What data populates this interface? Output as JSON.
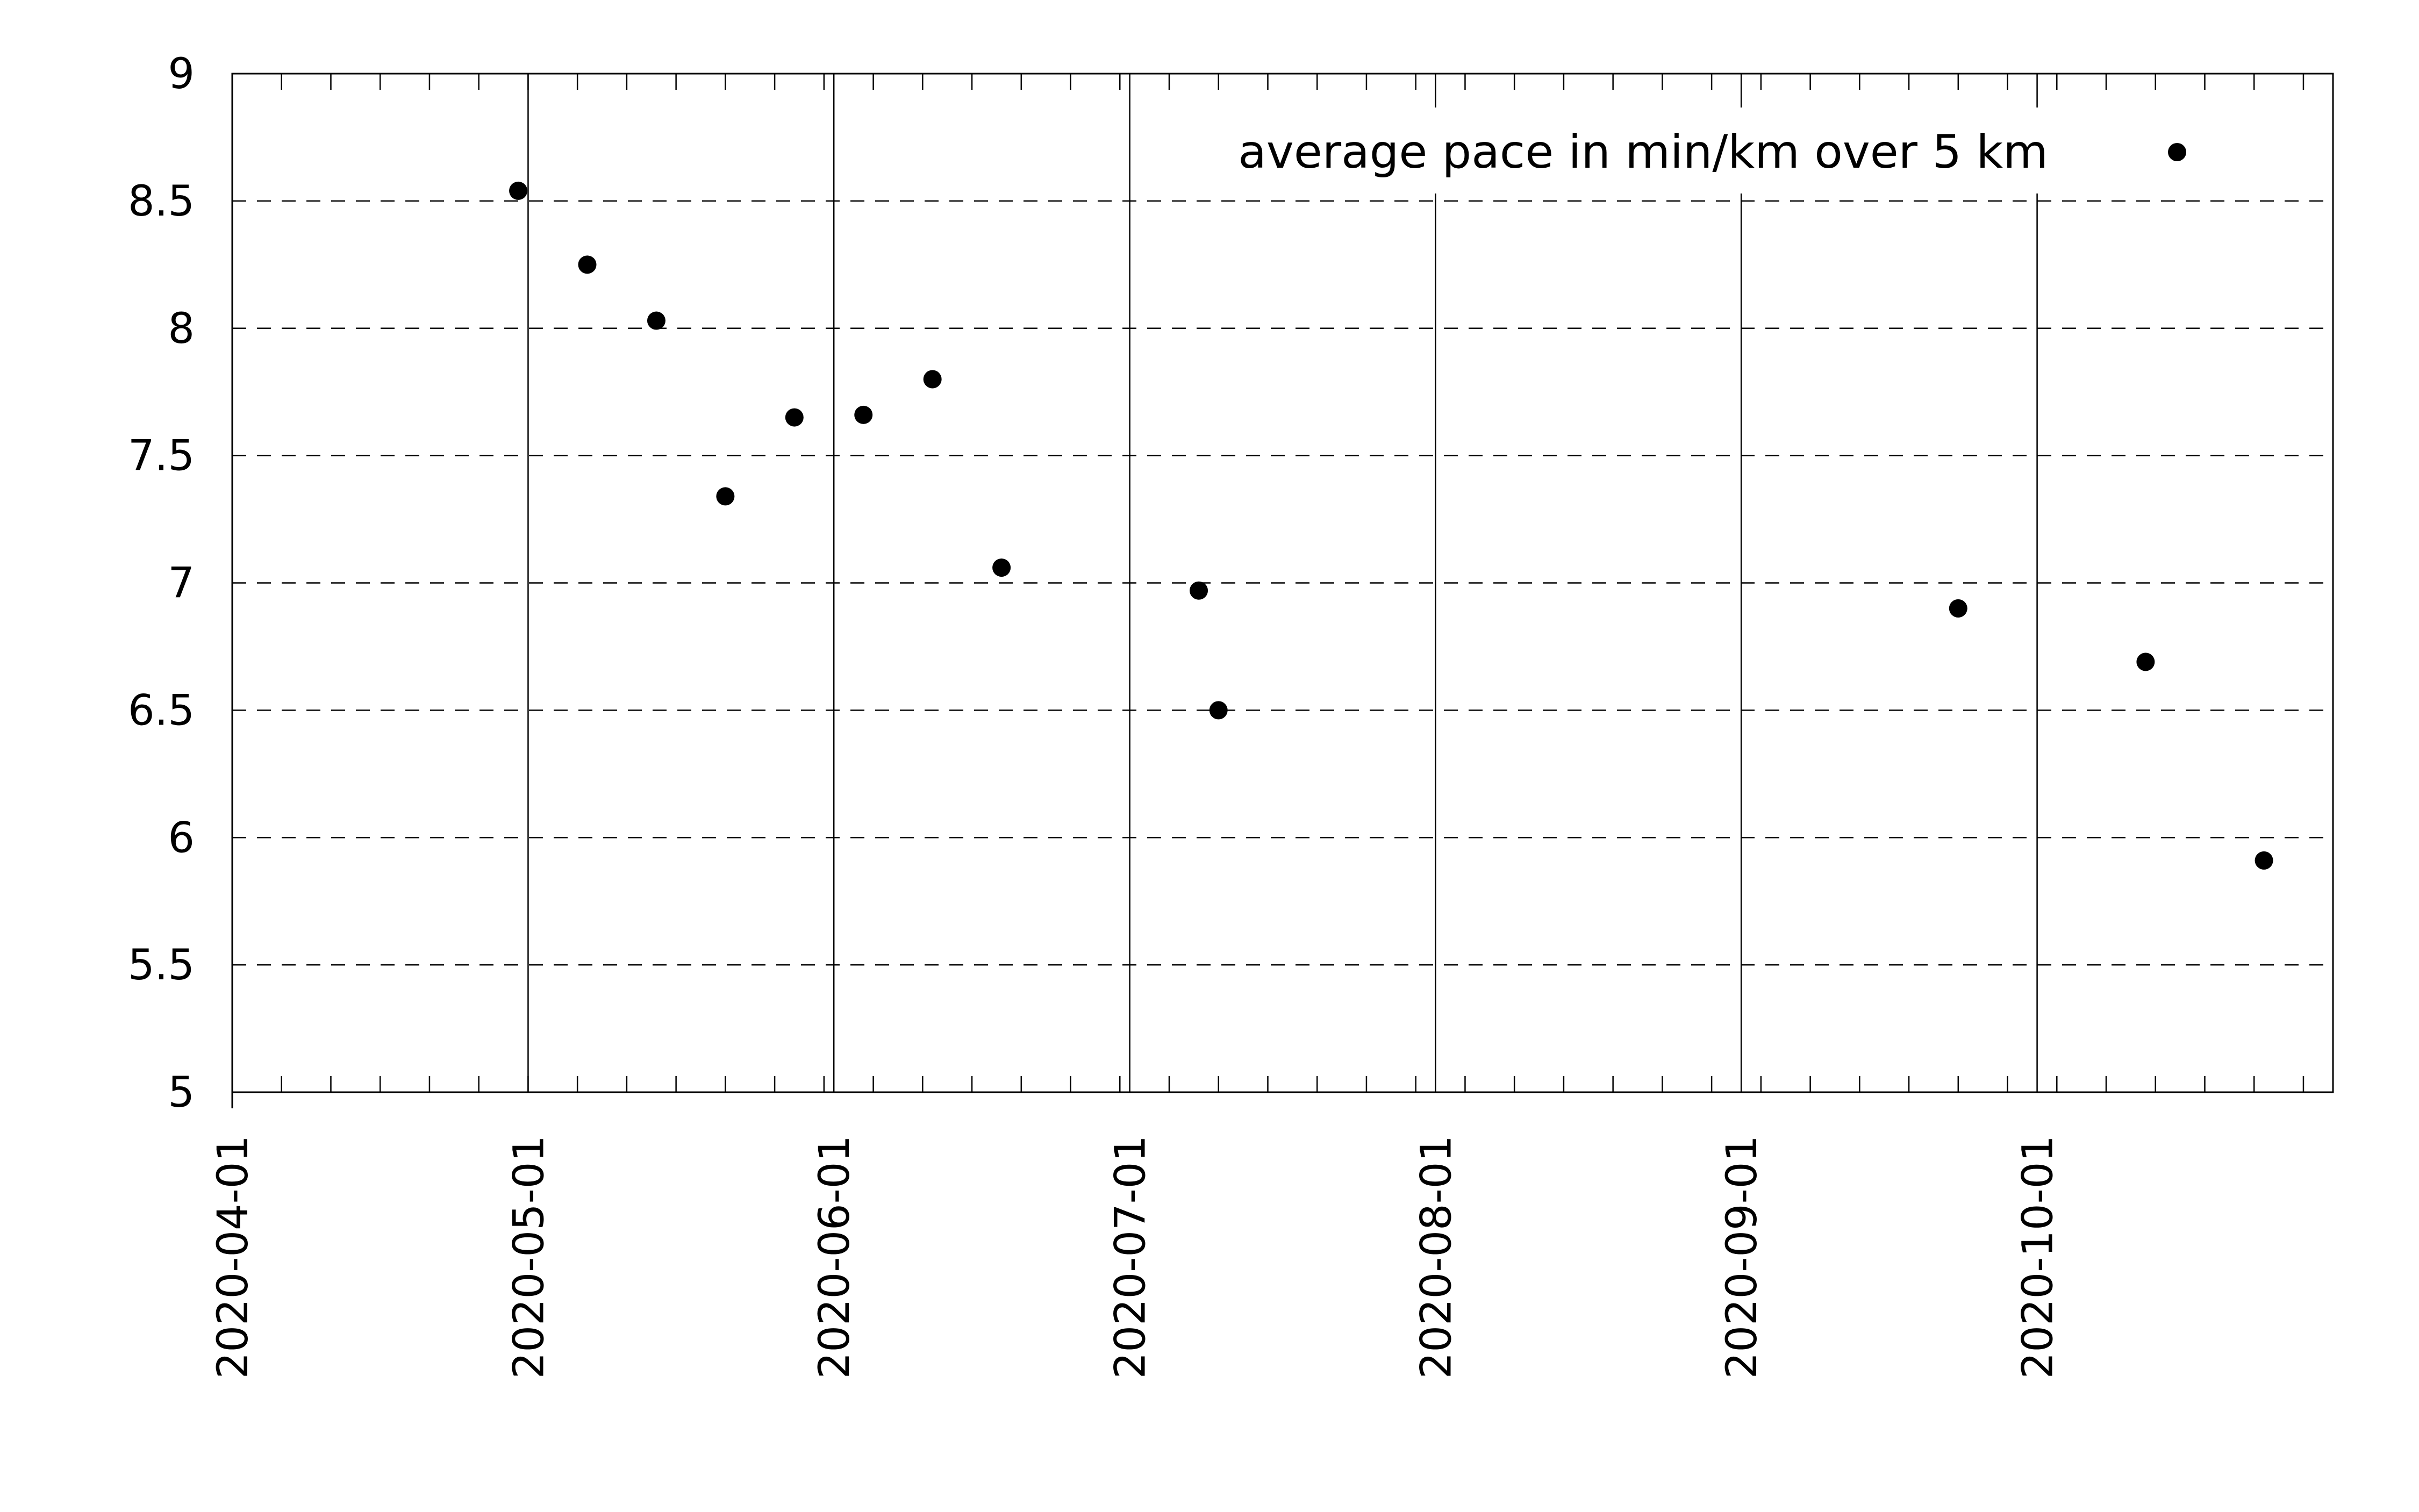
{
  "chart_data": {
    "type": "scatter",
    "legend": "top-right",
    "series": [
      {
        "name": "average pace in min/km over 5 km",
        "points": [
          {
            "x": "2020-04-30",
            "y": 8.54
          },
          {
            "x": "2020-05-07",
            "y": 8.25
          },
          {
            "x": "2020-05-14",
            "y": 8.03
          },
          {
            "x": "2020-05-21",
            "y": 7.34
          },
          {
            "x": "2020-05-28",
            "y": 7.65
          },
          {
            "x": "2020-06-04",
            "y": 7.66
          },
          {
            "x": "2020-06-11",
            "y": 7.8
          },
          {
            "x": "2020-06-18",
            "y": 7.06
          },
          {
            "x": "2020-07-08",
            "y": 6.97
          },
          {
            "x": "2020-07-10",
            "y": 6.5
          },
          {
            "x": "2020-09-23",
            "y": 6.9
          },
          {
            "x": "2020-10-12",
            "y": 6.69
          },
          {
            "x": "2020-10-24",
            "y": 5.91
          }
        ]
      }
    ],
    "xlim": [
      "2020-04-01",
      "2020-10-31"
    ],
    "ylim": [
      5,
      9
    ],
    "x_ticks": [
      "2020-04-01",
      "2020-05-01",
      "2020-06-01",
      "2020-07-01",
      "2020-08-01",
      "2020-09-01",
      "2020-10-01"
    ],
    "y_ticks": [
      "5",
      "5.5",
      "6",
      "6.5",
      "7",
      "7.5",
      "8",
      "8.5",
      "9"
    ],
    "grid": {
      "x": "solid",
      "y": "dashed"
    },
    "marker_color": "#000000"
  }
}
